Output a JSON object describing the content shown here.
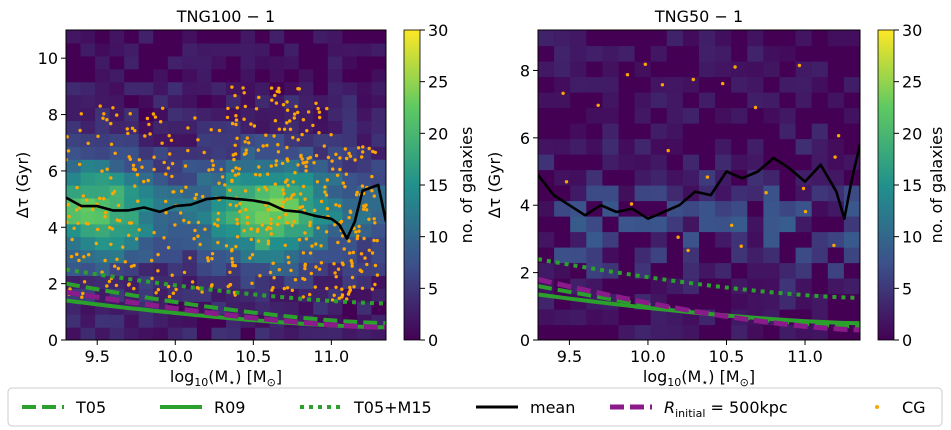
{
  "colors": {
    "t05": "#2ca02c",
    "r09": "#2ca02c",
    "t05m15": "#2ca02c",
    "mean": "#000000",
    "rinitial": "#8b1a8b",
    "cg": "#ffa500",
    "colormap": [
      "#440154",
      "#3b528b",
      "#21918c",
      "#5ec962",
      "#fde725"
    ]
  },
  "legend": [
    {
      "key": "t05",
      "label": "T05",
      "style": "dashed"
    },
    {
      "key": "r09",
      "label": "R09",
      "style": "solid"
    },
    {
      "key": "t05m15",
      "label": "T05+M15",
      "style": "dotted"
    },
    {
      "key": "mean",
      "label": "mean",
      "style": "solid"
    },
    {
      "key": "rinitial",
      "label_main": "R",
      "label_sub": "initial",
      "label_rest": " = 500kpc",
      "style": "dashed"
    },
    {
      "key": "cg",
      "label": "CG",
      "style": "point"
    }
  ],
  "chart_data": [
    {
      "type": "heatmap",
      "title": "TNG100 − 1",
      "xlabel": "log10(M⋆) [M⊙]",
      "xlabel_base": "log",
      "xlabel_sub": "10",
      "xlabel_rest": "(M",
      "xlabel_star": "⋆",
      "xlabel_close": ") [M",
      "xlabel_sun": "⊙",
      "xlabel_end": "]",
      "ylabel": "Δτ (Gyr)",
      "xlim": [
        9.3,
        11.35
      ],
      "ylim": [
        0,
        11
      ],
      "xticks": [
        9.5,
        10.0,
        10.5,
        11.0
      ],
      "xtick_labels": [
        "9.5",
        "10.0",
        "10.5",
        "11.0"
      ],
      "yticks": [
        0,
        2,
        4,
        6,
        8,
        10
      ],
      "ytick_labels": [
        "0",
        "2",
        "4",
        "6",
        "8",
        "10"
      ],
      "colorbar": {
        "label": "no. of galaxies",
        "min": 0,
        "max": 30,
        "ticks": [
          0,
          5,
          10,
          15,
          20,
          25,
          30
        ],
        "tick_labels": [
          "0",
          "5",
          "10",
          "15",
          "20",
          "25",
          "30"
        ]
      },
      "lines": {
        "mean": {
          "x": [
            9.3,
            9.4,
            9.5,
            9.6,
            9.7,
            9.8,
            9.9,
            10.0,
            10.1,
            10.2,
            10.3,
            10.4,
            10.5,
            10.6,
            10.7,
            10.8,
            10.9,
            11.0,
            11.05,
            11.1,
            11.15,
            11.2,
            11.3,
            11.35
          ],
          "y": [
            5.05,
            4.75,
            4.75,
            4.6,
            4.6,
            4.7,
            4.55,
            4.75,
            4.8,
            5.0,
            5.05,
            5.0,
            4.95,
            4.85,
            4.6,
            4.55,
            4.4,
            4.3,
            4.1,
            3.6,
            4.2,
            5.3,
            5.5,
            4.2
          ]
        },
        "t05": {
          "x": [
            9.3,
            11.35
          ],
          "y": [
            2.0,
            0.6
          ]
        },
        "r09": {
          "x": [
            9.3,
            11.35
          ],
          "y": [
            1.4,
            0.45
          ]
        },
        "t05m15": {
          "x": [
            9.3,
            11.35
          ],
          "y": [
            2.5,
            1.3
          ]
        },
        "rinitial": {
          "x": [
            9.3,
            11.35
          ],
          "y": [
            1.7,
            0.45
          ]
        }
      },
      "heat_seed": 7,
      "scatter_seed": 11
    },
    {
      "type": "heatmap",
      "title": "TNG50 − 1",
      "xlabel": "log10(M⋆) [M⊙]",
      "xlabel_base": "log",
      "xlabel_sub": "10",
      "xlabel_rest": "(M",
      "xlabel_star": "⋆",
      "xlabel_close": ") [M",
      "xlabel_sun": "⊙",
      "xlabel_end": "]",
      "ylabel": "Δτ (Gyr)",
      "xlim": [
        9.3,
        11.35
      ],
      "ylim": [
        0,
        9.2
      ],
      "xticks": [
        9.5,
        10.0,
        10.5,
        11.0
      ],
      "xtick_labels": [
        "9.5",
        "10.0",
        "10.5",
        "11.0"
      ],
      "yticks": [
        0,
        2,
        4,
        6,
        8
      ],
      "ytick_labels": [
        "0",
        "2",
        "4",
        "6",
        "8"
      ],
      "colorbar": {
        "label": "no. of galaxies",
        "min": 0,
        "max": 30,
        "ticks": [
          0,
          5,
          10,
          15,
          20,
          25,
          30
        ],
        "tick_labels": [
          "0",
          "5",
          "10",
          "15",
          "20",
          "25",
          "30"
        ]
      },
      "lines": {
        "mean": {
          "x": [
            9.3,
            9.4,
            9.5,
            9.6,
            9.7,
            9.8,
            9.9,
            10.0,
            10.1,
            10.2,
            10.3,
            10.4,
            10.5,
            10.6,
            10.7,
            10.8,
            10.9,
            11.0,
            11.1,
            11.2,
            11.25,
            11.3,
            11.35
          ],
          "y": [
            4.9,
            4.3,
            4.0,
            3.7,
            4.0,
            3.8,
            3.9,
            3.6,
            3.8,
            4.0,
            4.4,
            4.3,
            5.0,
            4.8,
            5.0,
            5.4,
            5.1,
            4.7,
            5.2,
            4.4,
            3.6,
            4.8,
            5.8
          ]
        },
        "t05": {
          "x": [
            9.3,
            11.35
          ],
          "y": [
            1.6,
            0.4
          ]
        },
        "r09": {
          "x": [
            9.3,
            11.35
          ],
          "y": [
            1.35,
            0.5
          ]
        },
        "t05m15": {
          "x": [
            9.3,
            11.35
          ],
          "y": [
            2.4,
            1.25
          ]
        },
        "rinitial": {
          "x": [
            9.3,
            11.35
          ],
          "y": [
            1.8,
            0.3
          ]
        }
      },
      "heat_seed": 23,
      "scatter_seed": 29
    }
  ]
}
